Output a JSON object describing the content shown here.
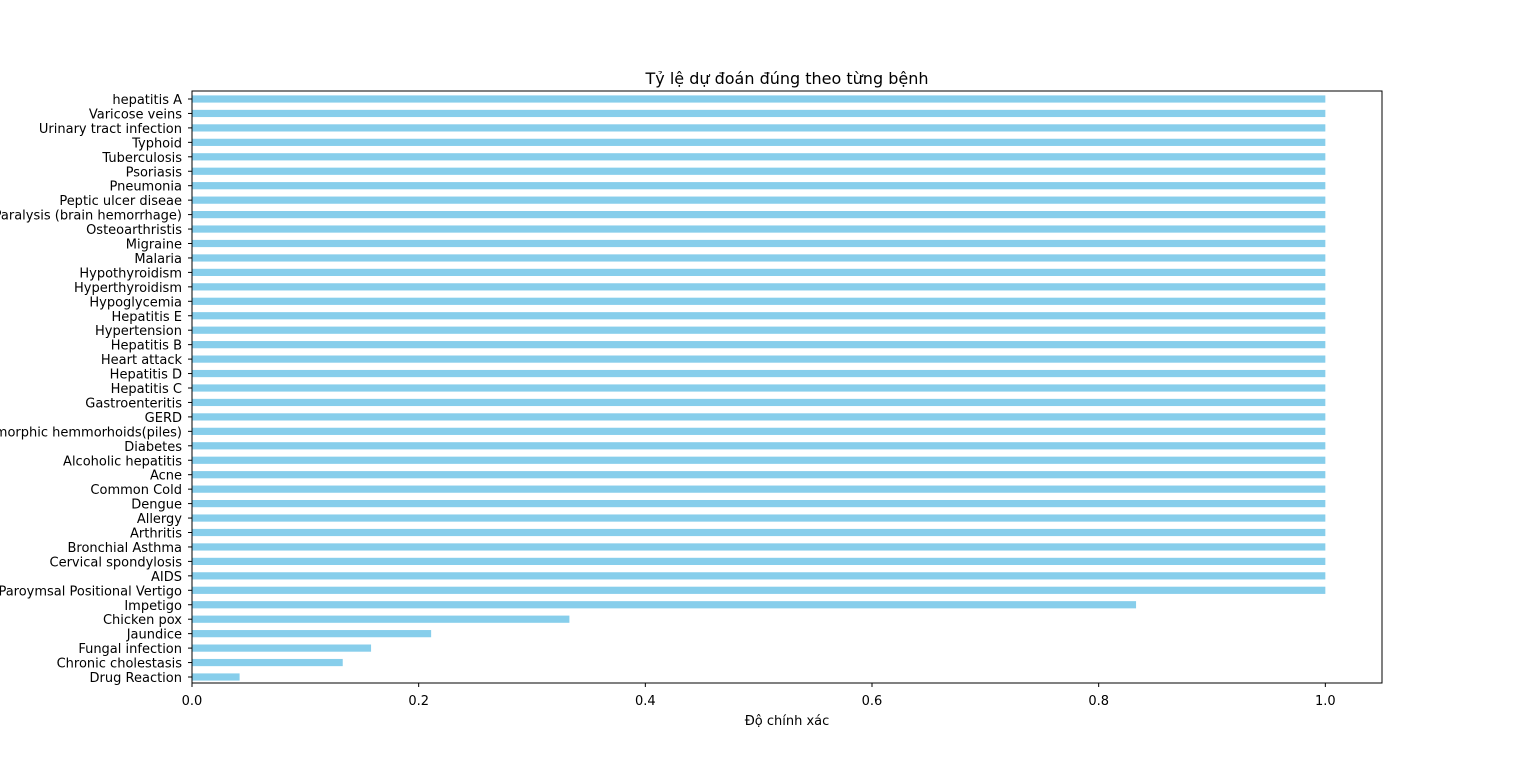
{
  "chart_data": {
    "type": "bar",
    "orientation": "horizontal",
    "title": "Tỷ lệ dự đoán đúng theo từng bệnh",
    "xlabel": "Độ chính xác",
    "ylabel": "",
    "xlim": [
      0,
      1.05
    ],
    "xticks": [
      0.0,
      0.2,
      0.4,
      0.6,
      0.8,
      1.0
    ],
    "xtick_labels": [
      "0.0",
      "0.2",
      "0.4",
      "0.6",
      "0.8",
      "1.0"
    ],
    "grid": false,
    "bar_color": "#87ceeb",
    "categories": [
      "hepatitis A",
      "Varicose veins",
      "Urinary tract infection",
      "Typhoid",
      "Tuberculosis",
      "Psoriasis",
      "Pneumonia",
      "Peptic ulcer diseae",
      "Paralysis (brain hemorrhage)",
      "Osteoarthristis",
      "Migraine",
      "Malaria",
      "Hypothyroidism",
      "Hyperthyroidism",
      "Hypoglycemia",
      "Hepatitis E",
      "Hypertension ",
      "Hepatitis B",
      "Heart attack",
      "Hepatitis D",
      "Hepatitis C",
      "Gastroenteritis",
      "GERD",
      "Dimorphic hemmorhoids(piles)",
      "Diabetes ",
      "Alcoholic hepatitis",
      "Acne",
      "Common Cold",
      "Dengue",
      "Allergy",
      "Arthritis",
      "Bronchial Asthma",
      "Cervical spondylosis",
      "AIDS",
      "(vertigo) Paroymsal  Positional Vertigo",
      "Impetigo",
      "Chicken pox",
      "Jaundice",
      "Fungal infection",
      "Chronic cholestasis",
      "Drug Reaction"
    ],
    "values": [
      1.0,
      1.0,
      1.0,
      1.0,
      1.0,
      1.0,
      1.0,
      1.0,
      1.0,
      1.0,
      1.0,
      1.0,
      1.0,
      1.0,
      1.0,
      1.0,
      1.0,
      1.0,
      1.0,
      1.0,
      1.0,
      1.0,
      1.0,
      1.0,
      1.0,
      1.0,
      1.0,
      1.0,
      1.0,
      1.0,
      1.0,
      1.0,
      1.0,
      1.0,
      1.0,
      0.833,
      0.333,
      0.211,
      0.158,
      0.133,
      0.042
    ]
  }
}
